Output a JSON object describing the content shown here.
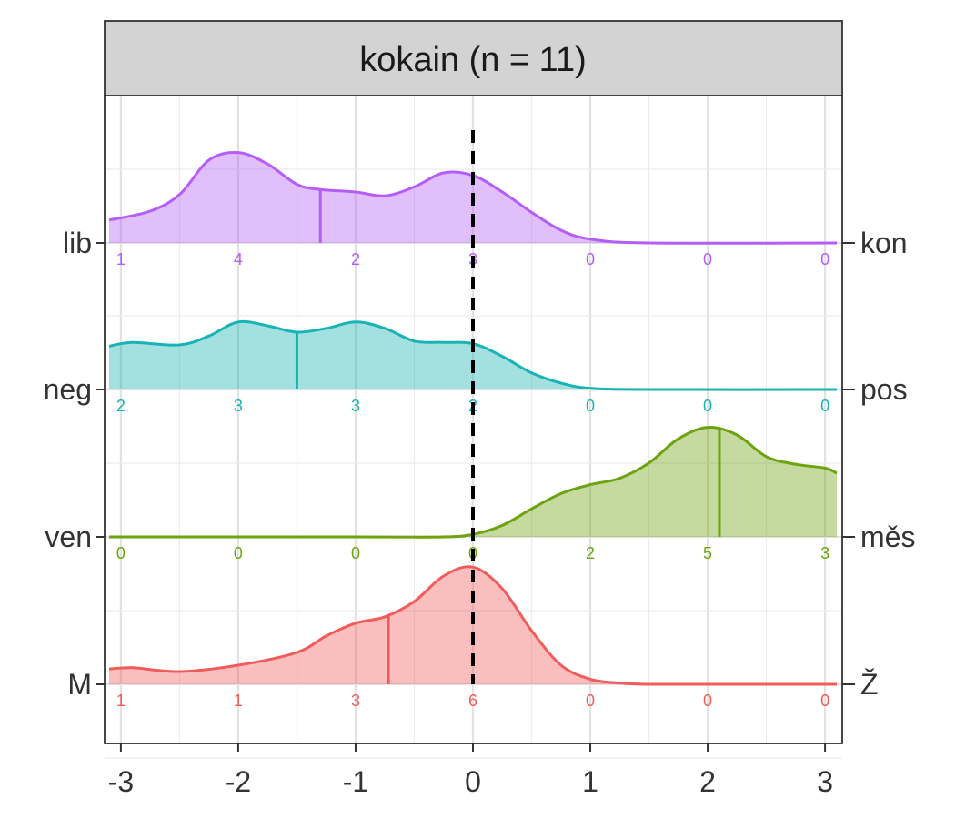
{
  "chart_data": {
    "type": "ridgeline",
    "facet_title": "kokain (n = 11)",
    "xlim": [
      -3.1,
      3.1
    ],
    "x_ticks": [
      -3,
      -2,
      -1,
      0,
      1,
      2,
      3
    ],
    "x_tick_labels": [
      "-3",
      "-2",
      "-1",
      "0",
      "1",
      "2",
      "3"
    ],
    "reference_line_x": 0,
    "grid": true,
    "series": [
      {
        "left_label": "M",
        "right_label": "Ž",
        "color": "#ef5c5a",
        "mean": -0.72,
        "counts": [
          1,
          1,
          3,
          6,
          0,
          0,
          0
        ],
        "density": [
          [
            -3.1,
            0.12
          ],
          [
            -2.9,
            0.13
          ],
          [
            -2.5,
            0.1
          ],
          [
            -2.0,
            0.15
          ],
          [
            -1.5,
            0.25
          ],
          [
            -1.25,
            0.38
          ],
          [
            -1.0,
            0.48
          ],
          [
            -0.75,
            0.53
          ],
          [
            -0.5,
            0.65
          ],
          [
            -0.25,
            0.85
          ],
          [
            0.0,
            0.92
          ],
          [
            0.25,
            0.75
          ],
          [
            0.5,
            0.42
          ],
          [
            0.75,
            0.15
          ],
          [
            1.0,
            0.04
          ],
          [
            1.25,
            0.01
          ],
          [
            1.5,
            0.0
          ],
          [
            2.0,
            0.0
          ],
          [
            3.1,
            0.0
          ]
        ]
      },
      {
        "left_label": "ven",
        "right_label": "měs",
        "color": "#6ca30e",
        "mean": 2.1,
        "counts": [
          0,
          0,
          0,
          0,
          2,
          5,
          3
        ],
        "density": [
          [
            -3.1,
            0.0
          ],
          [
            -1.0,
            0.0
          ],
          [
            -0.25,
            0.0
          ],
          [
            0.0,
            0.02
          ],
          [
            0.25,
            0.09
          ],
          [
            0.5,
            0.22
          ],
          [
            0.75,
            0.34
          ],
          [
            1.0,
            0.41
          ],
          [
            1.25,
            0.46
          ],
          [
            1.5,
            0.58
          ],
          [
            1.75,
            0.77
          ],
          [
            2.0,
            0.86
          ],
          [
            2.25,
            0.8
          ],
          [
            2.5,
            0.63
          ],
          [
            2.75,
            0.57
          ],
          [
            3.0,
            0.54
          ],
          [
            3.1,
            0.5
          ]
        ]
      },
      {
        "left_label": "neg",
        "right_label": "pos",
        "color": "#1ab3b5",
        "mean": -1.5,
        "counts": [
          2,
          3,
          3,
          2,
          0,
          0,
          0
        ],
        "density": [
          [
            -3.1,
            0.34
          ],
          [
            -2.9,
            0.37
          ],
          [
            -2.5,
            0.35
          ],
          [
            -2.25,
            0.42
          ],
          [
            -2.0,
            0.53
          ],
          [
            -1.75,
            0.5
          ],
          [
            -1.5,
            0.45
          ],
          [
            -1.25,
            0.48
          ],
          [
            -1.0,
            0.53
          ],
          [
            -0.75,
            0.48
          ],
          [
            -0.5,
            0.38
          ],
          [
            -0.25,
            0.37
          ],
          [
            0.0,
            0.36
          ],
          [
            0.25,
            0.26
          ],
          [
            0.5,
            0.13
          ],
          [
            0.75,
            0.05
          ],
          [
            1.0,
            0.01
          ],
          [
            1.5,
            0.0
          ],
          [
            3.1,
            0.0
          ]
        ]
      },
      {
        "left_label": "lib",
        "right_label": "kon",
        "color": "#b45ef7",
        "mean": -1.3,
        "counts": [
          1,
          4,
          2,
          3,
          0,
          0,
          0
        ],
        "density": [
          [
            -3.1,
            0.18
          ],
          [
            -2.75,
            0.25
          ],
          [
            -2.5,
            0.38
          ],
          [
            -2.25,
            0.65
          ],
          [
            -2.0,
            0.71
          ],
          [
            -1.75,
            0.62
          ],
          [
            -1.5,
            0.46
          ],
          [
            -1.3,
            0.42
          ],
          [
            -1.0,
            0.4
          ],
          [
            -0.75,
            0.37
          ],
          [
            -0.5,
            0.44
          ],
          [
            -0.25,
            0.55
          ],
          [
            0.0,
            0.53
          ],
          [
            0.25,
            0.4
          ],
          [
            0.5,
            0.24
          ],
          [
            0.75,
            0.1
          ],
          [
            1.0,
            0.03
          ],
          [
            1.5,
            0.0
          ],
          [
            3.1,
            0.0
          ]
        ]
      }
    ]
  }
}
